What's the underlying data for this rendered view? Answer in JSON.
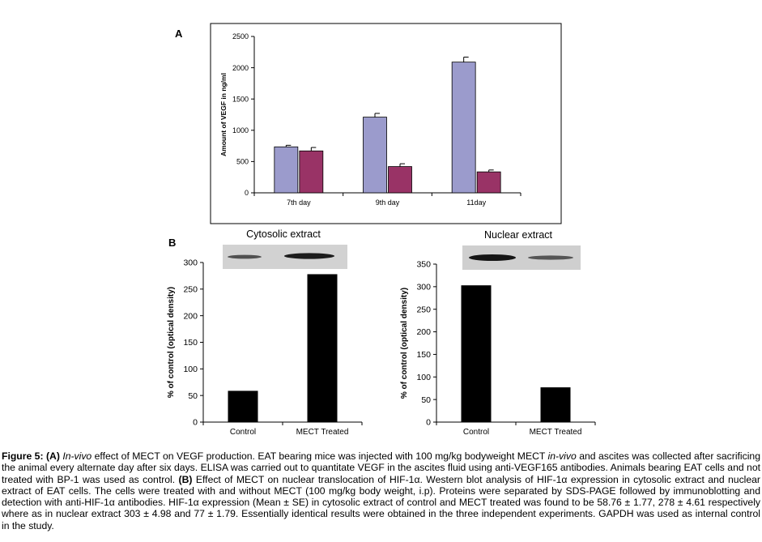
{
  "panel_labels": {
    "a": "A",
    "b": "B"
  },
  "panel_b_titles": {
    "left": "Cytosolic extract",
    "right": "Nuclear extract"
  },
  "colors": {
    "series1": "#9b9bcc",
    "series2": "#993366",
    "bar": "#000000"
  },
  "chart_data": [
    {
      "type": "bar",
      "panel": "A",
      "categories": [
        "7th day",
        "9th day",
        "11day"
      ],
      "series": [
        {
          "values": [
            735,
            1210,
            2090
          ],
          "errors": [
            25,
            60,
            80
          ]
        },
        {
          "values": [
            670,
            420,
            335
          ],
          "errors": [
            55,
            45,
            30
          ]
        }
      ],
      "ylabel": "Amount of VEGF in ng/ml",
      "ylim": [
        0,
        2500
      ],
      "yticks": [
        0,
        500,
        1000,
        1500,
        2000,
        2500
      ]
    },
    {
      "type": "bar",
      "panel": "B-left",
      "title": "Cytosolic extract",
      "categories": [
        "Control",
        "MECT Treated"
      ],
      "values": [
        58.76,
        278
      ],
      "ylabel": "% of control (optical density)",
      "ylim": [
        0,
        300
      ],
      "yticks": [
        0,
        50,
        100,
        150,
        200,
        250,
        300
      ]
    },
    {
      "type": "bar",
      "panel": "B-right",
      "title": "Nuclear extract",
      "categories": [
        "Control",
        "MECT Treated"
      ],
      "values": [
        303,
        77
      ],
      "ylabel": "% of control (optical density)",
      "ylim": [
        0,
        350
      ],
      "yticks": [
        0,
        50,
        100,
        150,
        200,
        250,
        300,
        350
      ]
    }
  ],
  "caption": {
    "label": "Figure 5:",
    "a_tag": "(A)",
    "a_italic1": "In-vivo",
    "a_text1": " effect of MECT on VEGF production. EAT bearing mice was injected with 100 mg/kg bodyweight MECT ",
    "a_italic2": "in-vivo",
    "a_text2": " and ascites was collected after sacrificing the animal every alternate day after six days. ELISA was carried out to quantitate VEGF in the ascites fluid using anti-VEGF165 antibodies. Animals bearing EAT cells and not treated with BP-1 was used as control. ",
    "b_tag": "(B)",
    "b_text": " Effect of MECT on nuclear translocation of HIF-1α. Western blot analysis of HIF-1α expression in cytosolic extract and nuclear extract of EAT cells. The cells were treated with and without MECT (100 mg/kg body weight, i.p). Proteins were separated by SDS-PAGE followed by immunoblotting and detection with anti-HIF-1α antibodies. HIF-1α expression (Mean ± SE) in cytosolic extract of control and MECT treated was found to be 58.76 ± 1.77, 278 ± 4.61 respectively where as in nuclear extract 303 ± 4.98 and 77 ± 1.79. Essentially identical results were obtained in the three independent experiments. GAPDH was used as internal control in the study."
  }
}
